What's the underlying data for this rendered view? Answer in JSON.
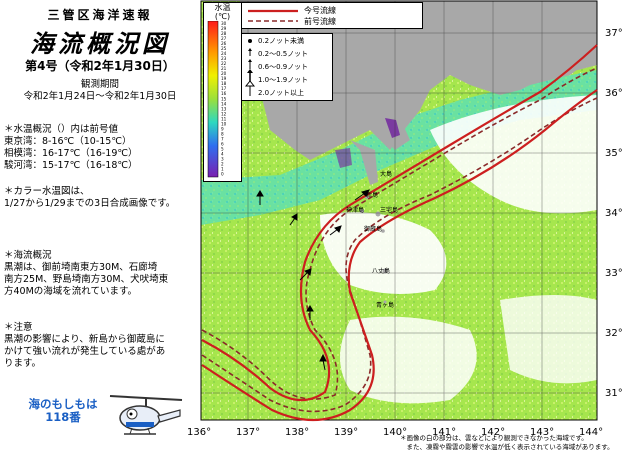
{
  "header": {
    "org": "三管区海洋速報",
    "title": "海流概況図",
    "issue": "第4号（令和2年1月30日）",
    "period_label": "観測期間",
    "period": "令和2年1月24日～令和2年1月30日"
  },
  "water_temp": {
    "heading": "＊水温概況（）内は前号値",
    "lines": [
      "東京湾：8-16℃（10-15℃）",
      "相模湾：16-17℃（16-19℃）",
      "駿河湾：15-17℃（16-18℃）"
    ]
  },
  "color_map": {
    "line1": "＊カラー水温図は、",
    "line2": "1/27から1/29までの3日合成画像です。"
  },
  "current": {
    "heading": "＊海流概況",
    "lines": [
      "黒潮は、御前埼南東方30M、石廊埼",
      "南方25M、野島埼南方30M、犬吠埼東",
      "方40Mの海域を流れています。"
    ]
  },
  "caution": {
    "heading": "＊注意",
    "lines": [
      "黒潮の影響により、新島から御蔵島に",
      "かけて強い流れが発生している處があ",
      "ります。"
    ]
  },
  "motto": {
    "line1": "海のもしもは",
    "line2": "118番"
  },
  "legend_water": {
    "heading1": "水温",
    "heading2": "(℃)",
    "ticks": [
      "30",
      "29",
      "28",
      "27",
      "26",
      "25",
      "24",
      "23",
      "22",
      "21",
      "20",
      "19",
      "18",
      "17",
      "16",
      "15",
      "14",
      "13",
      "12",
      "11",
      "10",
      "9",
      "8",
      "7",
      "6",
      "5",
      "4",
      "3",
      "2",
      "1",
      "0"
    ]
  },
  "legend_lines": {
    "current": "今号流線",
    "previous": "前号流線"
  },
  "legend_arrows": {
    "items": [
      "0.2ノット未満",
      "0.2～0.5ノット",
      "0.6～0.9ノット",
      "1.0～1.9ノット",
      "2.0ノット以上"
    ]
  },
  "latitudes": [
    "37°",
    "36°",
    "35°",
    "34°",
    "33°",
    "32°",
    "31°"
  ],
  "longitudes": [
    "136°",
    "137°",
    "138°",
    "139°",
    "140°",
    "141°",
    "142°",
    "143°",
    "144°"
  ],
  "places": {
    "oshima": "大島",
    "niijima": "新島",
    "kozushima": "神津島",
    "miyake": "三宅島",
    "mikura": "御蔵島",
    "hachijo": "八丈島",
    "aogashima": "青ヶ島"
  },
  "footnote": {
    "line1": "＊画像の白の部分は、雲などにより観測できなかった海域です。",
    "line2": "　また、凍霧や霧雲の影響で水温が低く表示されている海域があります。"
  },
  "colors": {
    "current_line": "#cc1f1f",
    "previous_line": "#8a2a2a",
    "land": "#a8a8a8",
    "sea_main": "#a6e64d",
    "motto_blue": "#1a5fc4"
  }
}
